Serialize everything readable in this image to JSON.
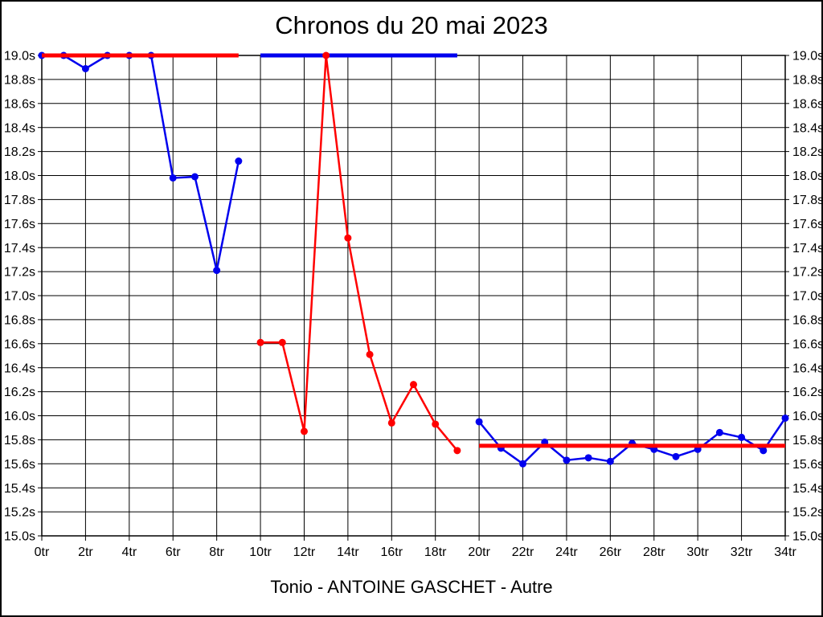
{
  "chart_data": {
    "type": "line",
    "title": "Chronos du 20 mai 2023",
    "footer": "Tonio - ANTOINE GASCHET - Autre",
    "xlabel": "",
    "ylabel": "",
    "x_unit": "tr",
    "y_unit": "s",
    "xlim": [
      0,
      34
    ],
    "ylim": [
      15.0,
      19.0
    ],
    "grid": true,
    "legend": "none",
    "x_ticks": [
      {
        "value": 0,
        "label": "0tr"
      },
      {
        "value": 2,
        "label": "2tr"
      },
      {
        "value": 4,
        "label": "4tr"
      },
      {
        "value": 6,
        "label": "6tr"
      },
      {
        "value": 8,
        "label": "8tr"
      },
      {
        "value": 10,
        "label": "10tr"
      },
      {
        "value": 12,
        "label": "12tr"
      },
      {
        "value": 14,
        "label": "14tr"
      },
      {
        "value": 16,
        "label": "16tr"
      },
      {
        "value": 18,
        "label": "18tr"
      },
      {
        "value": 20,
        "label": "20tr"
      },
      {
        "value": 22,
        "label": "22tr"
      },
      {
        "value": 24,
        "label": "24tr"
      },
      {
        "value": 26,
        "label": "26tr"
      },
      {
        "value": 28,
        "label": "28tr"
      },
      {
        "value": 30,
        "label": "30tr"
      },
      {
        "value": 32,
        "label": "32tr"
      },
      {
        "value": 34,
        "label": "34tr"
      }
    ],
    "y_ticks": [
      {
        "value": 19.0,
        "label": "19.0s"
      },
      {
        "value": 18.8,
        "label": "18.8s"
      },
      {
        "value": 18.6,
        "label": "18.6s"
      },
      {
        "value": 18.4,
        "label": "18.4s"
      },
      {
        "value": 18.2,
        "label": "18.2s"
      },
      {
        "value": 18.0,
        "label": "18.0s"
      },
      {
        "value": 17.8,
        "label": "17.8s"
      },
      {
        "value": 17.6,
        "label": "17.6s"
      },
      {
        "value": 17.4,
        "label": "17.4s"
      },
      {
        "value": 17.2,
        "label": "17.2s"
      },
      {
        "value": 17.0,
        "label": "17.0s"
      },
      {
        "value": 16.8,
        "label": "16.8s"
      },
      {
        "value": 16.6,
        "label": "16.6s"
      },
      {
        "value": 16.4,
        "label": "16.4s"
      },
      {
        "value": 16.2,
        "label": "16.2s"
      },
      {
        "value": 16.0,
        "label": "16.0s"
      },
      {
        "value": 15.8,
        "label": "15.8s"
      },
      {
        "value": 15.6,
        "label": "15.6s"
      },
      {
        "value": 15.4,
        "label": "15.4s"
      },
      {
        "value": 15.2,
        "label": "15.2s"
      },
      {
        "value": 15.0,
        "label": "15.0s"
      }
    ],
    "series": [
      {
        "name": "run-1-blue",
        "color": "#0000ee",
        "z": 1,
        "x": [
          0,
          1,
          2,
          3,
          4,
          5,
          6,
          7,
          8,
          9
        ],
        "y": [
          19.0,
          19.0,
          18.89,
          19.0,
          19.0,
          19.0,
          17.98,
          17.99,
          17.21,
          18.12
        ]
      },
      {
        "name": "run-2-red",
        "color": "#ff0000",
        "z": 4,
        "x": [
          10,
          11,
          12,
          13,
          14,
          15,
          16,
          17,
          18,
          19
        ],
        "y": [
          16.61,
          16.61,
          15.87,
          19.0,
          17.48,
          16.51,
          15.94,
          16.26,
          15.93,
          15.71
        ]
      },
      {
        "name": "run-3-blue",
        "color": "#0000ee",
        "z": 5,
        "x": [
          20,
          21,
          22,
          23,
          24,
          25,
          26,
          27,
          28,
          29,
          30,
          31,
          32,
          33,
          34
        ],
        "y": [
          15.95,
          15.73,
          15.6,
          15.78,
          15.63,
          15.65,
          15.62,
          15.77,
          15.72,
          15.66,
          15.72,
          15.86,
          15.82,
          15.71,
          15.98
        ]
      }
    ],
    "reference_lines": [
      {
        "name": "ref-line-1",
        "color": "#ff0000",
        "y": 19.0,
        "x_start": 0,
        "x_end": 9,
        "z": 2
      },
      {
        "name": "ref-line-2",
        "color": "#0000ee",
        "y": 19.0,
        "x_start": 10,
        "x_end": 19,
        "z": 3
      },
      {
        "name": "ref-line-3",
        "color": "#ff0000",
        "y": 15.75,
        "x_start": 20,
        "x_end": 34,
        "z": 6
      }
    ],
    "colors": {
      "blue_series": "#0000ee",
      "red_series": "#ff0000",
      "grid": "#000000",
      "background": "#ffffff",
      "text": "#000000"
    }
  }
}
